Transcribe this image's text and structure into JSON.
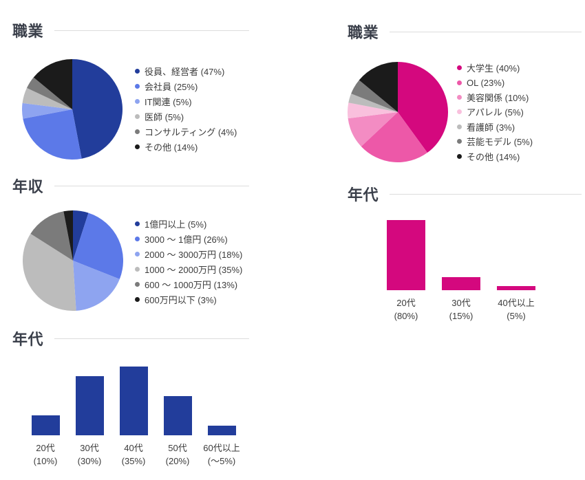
{
  "theme": {
    "blue_accent": "#223d9b",
    "pink_accent": "#d4087e",
    "title_color": "#3a3f4a",
    "text_color": "#3b3b3b",
    "divider_color": "#dcdcdc",
    "background": "#ffffff"
  },
  "chart_data": [
    {
      "id": "occupation-left",
      "type": "pie",
      "title": "職業",
      "legend_position": "right",
      "segments": [
        {
          "label": "役員、経営者",
          "value": 47,
          "color": "#223d9b"
        },
        {
          "label": "会社員",
          "value": 25,
          "color": "#5c79e8"
        },
        {
          "label": "IT関連",
          "value": 5,
          "color": "#8ea4f0"
        },
        {
          "label": "医師",
          "value": 5,
          "color": "#bcbcbc"
        },
        {
          "label": "コンサルティング",
          "value": 4,
          "color": "#7b7b7b"
        },
        {
          "label": "その他",
          "value": 14,
          "color": "#1b1b1b"
        }
      ]
    },
    {
      "id": "income-left",
      "type": "pie",
      "title": "年収",
      "legend_position": "right",
      "segments": [
        {
          "label": "1億円以上",
          "value": 5,
          "color": "#223d9b"
        },
        {
          "label": "3000 〜 1億円",
          "value": 26,
          "color": "#5c79e8"
        },
        {
          "label": "2000 〜 3000万円",
          "value": 18,
          "color": "#8ea4f0"
        },
        {
          "label": "1000 〜 2000万円",
          "value": 35,
          "color": "#bcbcbc"
        },
        {
          "label": "600 〜 1000万円",
          "value": 13,
          "color": "#7b7b7b"
        },
        {
          "label": "600万円以下",
          "value": 3,
          "color": "#1b1b1b"
        }
      ]
    },
    {
      "id": "age-left",
      "type": "bar",
      "title": "年代",
      "color": "#223d9b",
      "ylim": [
        0,
        35
      ],
      "grid": false,
      "bars": [
        {
          "label": "20代",
          "value": 10,
          "pct_label": "(10%)"
        },
        {
          "label": "30代",
          "value": 30,
          "pct_label": "(30%)"
        },
        {
          "label": "40代",
          "value": 35,
          "pct_label": "(35%)"
        },
        {
          "label": "50代",
          "value": 20,
          "pct_label": "(20%)"
        },
        {
          "label": "60代以上",
          "value": 5,
          "pct_label": "(〜5%)"
        }
      ]
    },
    {
      "id": "occupation-right",
      "type": "pie",
      "title": "職業",
      "legend_position": "right",
      "segments": [
        {
          "label": "大学生",
          "value": 40,
          "color": "#d4087e"
        },
        {
          "label": "OL",
          "value": 23,
          "color": "#ed58a8"
        },
        {
          "label": "美容関係",
          "value": 10,
          "color": "#f38cc3"
        },
        {
          "label": "アパレル",
          "value": 5,
          "color": "#f9c0dd"
        },
        {
          "label": "看護師",
          "value": 3,
          "color": "#bcbcbc"
        },
        {
          "label": "芸能モデル",
          "value": 5,
          "color": "#7b7b7b"
        },
        {
          "label": "その他",
          "value": 14,
          "color": "#1b1b1b"
        }
      ]
    },
    {
      "id": "age-right",
      "type": "bar",
      "title": "年代",
      "color": "#d4087e",
      "ylim": [
        0,
        80
      ],
      "grid": false,
      "bars": [
        {
          "label": "20代",
          "value": 80,
          "pct_label": "(80%)"
        },
        {
          "label": "30代",
          "value": 15,
          "pct_label": "(15%)"
        },
        {
          "label": "40代以上",
          "value": 5,
          "pct_label": "(5%)"
        }
      ]
    }
  ]
}
